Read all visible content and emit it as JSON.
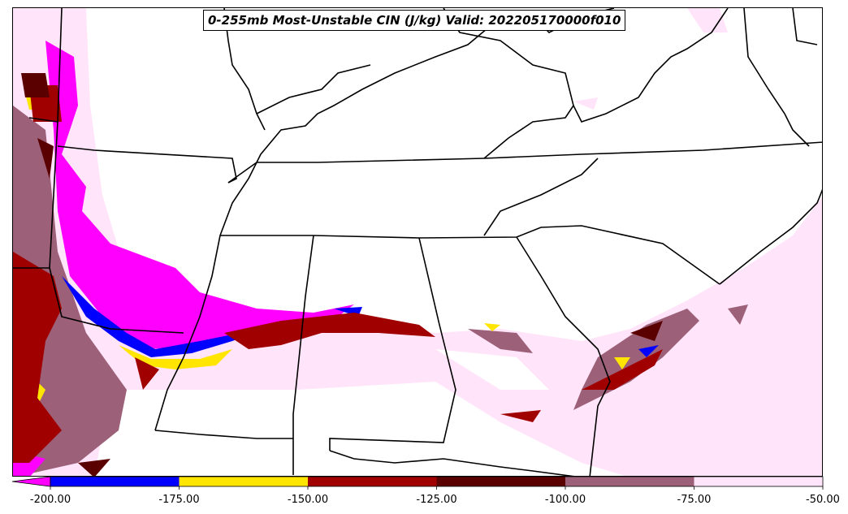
{
  "title": "0-255mb Most-Unstable CIN (J/kg) Valid: 202205170000f010",
  "colorbar": {
    "ticks": [
      "-200.00",
      "-175.00",
      "-150.00",
      "-125.00",
      "-100.00",
      "-75.00",
      "-50.00"
    ],
    "colors": [
      "#ff00ff",
      "#0000ff",
      "#ffe500",
      "#a00000",
      "#5a0000",
      "#9c6078",
      "#ffe4fa"
    ],
    "range": [
      -200,
      -50
    ],
    "extend": "min"
  },
  "legend_semantics": "filled contours of convective inhibition"
}
